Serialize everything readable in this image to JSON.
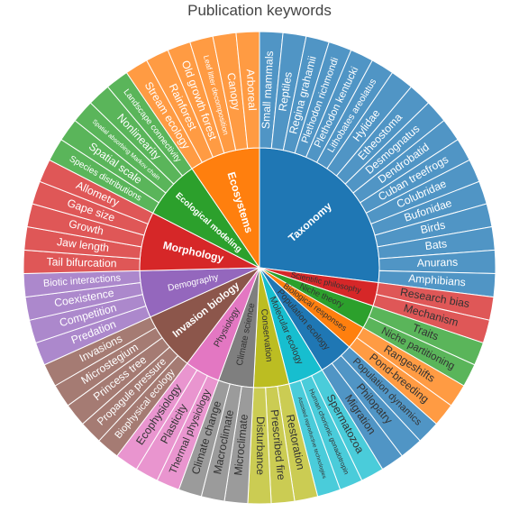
{
  "chart_data": {
    "type": "sunburst",
    "title": "Publication keywords",
    "hierarchy": [
      {
        "name": "Taxonomy",
        "color": "#1f77b4",
        "children": [
          "Small mammals",
          "Reptiles",
          "Regina grahamii",
          "Plethodon richmondi",
          "Plethodon kentucki",
          "Lithobates areolatus",
          "Hylidae",
          "Etheostoma",
          "Desmognatus",
          "Dendrobatid",
          "Cuban treefrogs",
          "Colubridae",
          "Bufonidae",
          "Birds",
          "Bats",
          "Anurans",
          "Amphibians"
        ]
      },
      {
        "name": "Scientific philosophy",
        "color": "#d62728",
        "children": [
          "Research bias",
          "Mechanism"
        ]
      },
      {
        "name": "Niche theory",
        "color": "#2ca02c",
        "children": [
          "Traits",
          "Niche partitioning"
        ]
      },
      {
        "name": "Biological responses",
        "color": "#ff7f0e",
        "children": [
          "Rangeshifts",
          "Pond-breeding"
        ]
      },
      {
        "name": "Population ecology",
        "color": "#1f77b4",
        "children": [
          "Population dynamics",
          "Philopatry",
          "Migration"
        ]
      },
      {
        "name": "Molecular ecology",
        "color": "#17becf",
        "children": [
          "Spermatozoa",
          "Human chorionic gonadotropin",
          "Assisted reproductive technologies"
        ]
      },
      {
        "name": "Conservation",
        "color": "#bcbd22",
        "children": [
          "Restoration",
          "Prescribed fire",
          "Disturbance"
        ]
      },
      {
        "name": "Climate science",
        "color": "#7f7f7f",
        "children": [
          "Microclimate",
          "Macroclimate",
          "Climate change"
        ]
      },
      {
        "name": "Physiology",
        "color": "#e377c2",
        "children": [
          "Thermal physiology",
          "Plasticity",
          "Ecophysiology"
        ]
      },
      {
        "name": "Invasion biology",
        "color": "#8c564b",
        "children": [
          "Biophysical ecology",
          "Propagule pressure",
          "Princess tree",
          "Microstegium",
          "Invasions"
        ]
      },
      {
        "name": "Demography",
        "color": "#9467bd",
        "children": [
          "Predation",
          "Competition",
          "Coexistence",
          "Biotic interactions"
        ]
      },
      {
        "name": "Morphology",
        "color": "#d62728",
        "children": [
          "Tail bifurcation",
          "Jaw length",
          "Growth",
          "Gape size",
          "Allometry"
        ]
      },
      {
        "name": "Ecological modeling",
        "color": "#2ca02c",
        "children": [
          "Species distributions",
          "Spatial scale",
          "Spatial absorbing Markov chain",
          "Nonlinearity",
          "Landscape connectivity"
        ]
      },
      {
        "name": "Ecosystems",
        "color": "#ff7f0e",
        "children": [
          "Stream ecology",
          "Rainforest",
          "Old growth forest",
          "Leaf litter decomposition",
          "Canopy",
          "Arboreal"
        ]
      }
    ]
  }
}
